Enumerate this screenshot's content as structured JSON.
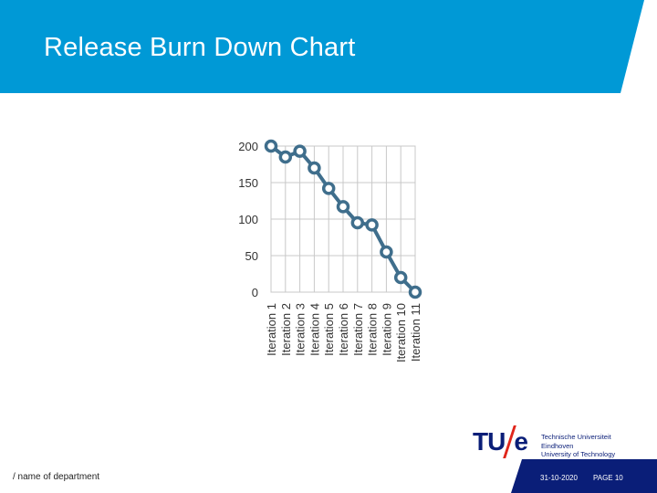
{
  "slide": {
    "title": "Release Burn Down Chart",
    "footer_department": "/ name of department",
    "footer_date": "31-10-2020",
    "footer_page": "PAGE 10",
    "colors": {
      "header": "#0099d6",
      "footer": "#0a1e78",
      "line": "#3f6e8c",
      "grid": "#c8c8c8"
    }
  },
  "logo": {
    "mark_left": "TU",
    "mark_right": "e",
    "line1": "Technische Universiteit",
    "line2": "Eindhoven",
    "line3": "University of Technology"
  },
  "chart_data": {
    "type": "line",
    "title": "",
    "xlabel": "",
    "ylabel": "",
    "categories": [
      "Iteration 1",
      "Iteration 2",
      "Iteration 3",
      "Iteration 4",
      "Iteration 5",
      "Iteration 6",
      "Iteration 7",
      "Iteration 8",
      "Iteration 9",
      "Iteration 10",
      "Iteration 11"
    ],
    "values": [
      200,
      185,
      193,
      170,
      142,
      117,
      95,
      92,
      55,
      20,
      0
    ],
    "ylim": [
      0,
      200
    ],
    "yticks": [
      0,
      50,
      100,
      150,
      200
    ],
    "grid": true,
    "legend": "none"
  }
}
